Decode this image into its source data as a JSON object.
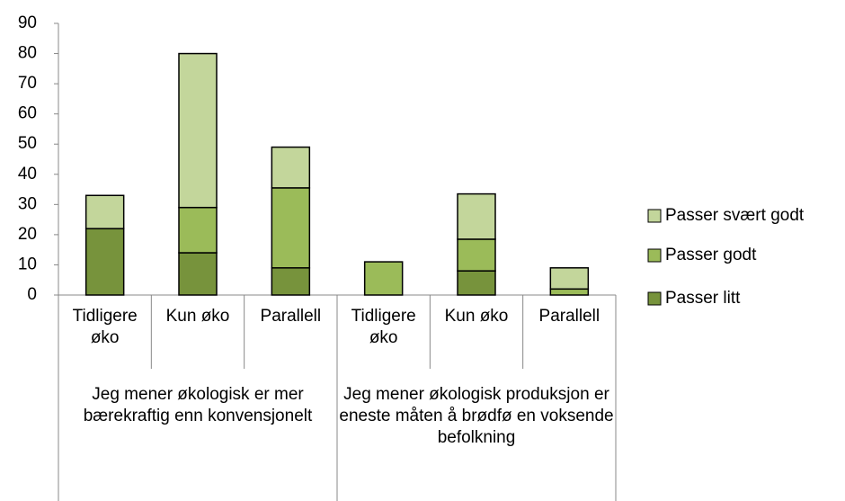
{
  "chart_data": {
    "type": "stacked_bar",
    "categories": [
      "Tidligere øko",
      "Kun øko",
      "Parallell",
      "Tidligere øko",
      "Kun øko",
      "Parallell"
    ],
    "groups": [
      "Jeg mener økologisk er mer bærekraftig enn konvensjonelt",
      "Jeg mener økologisk produksjon er eneste måten å brødfø en voksende befolkning"
    ],
    "series": [
      {
        "name": "Passer litt",
        "color": "#77933c",
        "values": [
          22,
          14,
          9,
          0,
          8,
          0
        ]
      },
      {
        "name": "Passer godt",
        "color": "#9bbb59",
        "values": [
          0,
          15,
          26.5,
          11,
          10.5,
          2
        ]
      },
      {
        "name": "Passer svært godt",
        "color": "#c3d69b",
        "values": [
          11,
          51,
          13.5,
          0,
          15,
          7
        ]
      }
    ],
    "ylim": [
      0,
      90
    ],
    "yticks": [
      0,
      10,
      20,
      30,
      40,
      50,
      60,
      70,
      80,
      90
    ],
    "legend": "right"
  }
}
